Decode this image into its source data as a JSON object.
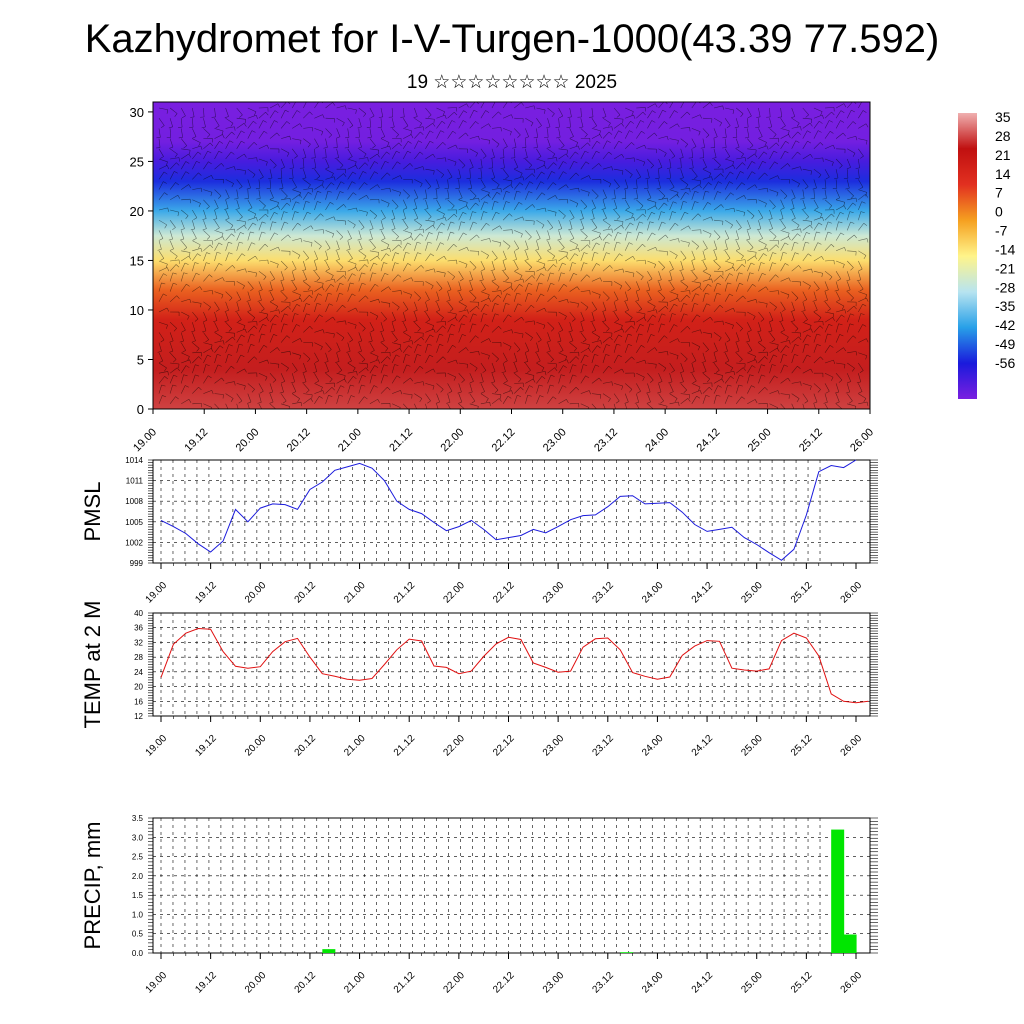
{
  "header": {
    "title": "Kazhydromet for I-V-Turgen-1000(43.39 77.592)",
    "subtitle": "19 ☆☆☆☆☆☆☆☆ 2025"
  },
  "colors": {
    "pmsl_line": "#1a1adc",
    "temp_line": "#e01010",
    "precip_bar": "#00e600",
    "colorbar": [
      "#7a1fe0",
      "#1a1adc",
      "#28a0e8",
      "#b8e4f0",
      "#fff48a",
      "#f5a020",
      "#e23020",
      "#c01010",
      "#f0b0b0"
    ]
  },
  "chart_data": [
    {
      "type": "heatmap",
      "name_hint": "cross-section",
      "title": "",
      "xlabel": "",
      "ylabel": "",
      "x_ticks": [
        "19.00",
        "19.12",
        "20.00",
        "20.12",
        "21.00",
        "21.12",
        "22.00",
        "22.12",
        "23.00",
        "23.12",
        "24.00",
        "24.12",
        "25.00",
        "25.12",
        "26.00"
      ],
      "y_ticks": [
        0,
        5,
        10,
        15,
        20,
        25,
        30
      ],
      "ylim": [
        0,
        31
      ],
      "levels": [
        {
          "y": 0,
          "value": 33
        },
        {
          "y": 4,
          "value": 30
        },
        {
          "y": 9,
          "value": 22
        },
        {
          "y": 12,
          "value": 10
        },
        {
          "y": 15,
          "value": -7
        },
        {
          "y": 17.5,
          "value": -20
        },
        {
          "y": 20,
          "value": -35
        },
        {
          "y": 23,
          "value": -48
        },
        {
          "y": 25,
          "value": -56
        },
        {
          "y": 27,
          "value": -62
        },
        {
          "y": 31,
          "value": -63
        }
      ],
      "colorbar": {
        "labels": [
          "35",
          "28",
          "21",
          "14",
          "7",
          "0",
          "-7",
          "-14",
          "-21",
          "-28",
          "-35",
          "-42",
          "-49",
          "-56"
        ],
        "range": [
          -63,
          42
        ]
      }
    },
    {
      "type": "line",
      "ylabel": "PMSL",
      "x_ticks": [
        "19.00",
        "19.12",
        "20.00",
        "20.12",
        "21.00",
        "21.12",
        "22.00",
        "22.12",
        "23.00",
        "23.12",
        "24.00",
        "24.12",
        "25.00",
        "25.12",
        "26.00"
      ],
      "y_ticks": [
        "999",
        "1002",
        "1005",
        "1008",
        "1011",
        "1014"
      ],
      "ylim": [
        999,
        1014
      ],
      "series": [
        {
          "values": [
            1005.2,
            1004.3,
            1003.3,
            1001.8,
            1000.6,
            1002.2,
            1006.8,
            1005.0,
            1007.0,
            1007.6,
            1007.5,
            1006.8,
            1009.7,
            1010.8,
            1012.5,
            1013.0,
            1013.5,
            1012.8,
            1011.0,
            1008.0,
            1006.8,
            1006.2,
            1004.9,
            1003.7,
            1004.3,
            1005.2,
            1003.9,
            1002.4,
            1002.7,
            1003.0,
            1003.9,
            1003.4,
            1004.3,
            1005.3,
            1005.9,
            1006.0,
            1007.2,
            1008.7,
            1008.8,
            1007.6,
            1007.7,
            1007.8,
            1006.4,
            1004.6,
            1003.6,
            1003.9,
            1004.2,
            1002.7,
            1001.7,
            1000.5,
            999.4,
            1001.0,
            1006.0,
            1012.3,
            1013.2,
            1012.9,
            1014.0
          ]
        }
      ]
    },
    {
      "type": "line",
      "ylabel": "TEMP at 2 M",
      "x_ticks": [
        "19.00",
        "19.12",
        "20.00",
        "20.12",
        "21.00",
        "21.12",
        "22.00",
        "22.12",
        "23.00",
        "23.12",
        "24.00",
        "24.12",
        "25.00",
        "25.12",
        "26.00"
      ],
      "y_ticks": [
        "12",
        "16",
        "20",
        "24",
        "28",
        "32",
        "36",
        "40"
      ],
      "ylim": [
        12,
        40
      ],
      "series": [
        {
          "values": [
            22.5,
            31.5,
            34.5,
            35.8,
            35.6,
            29.5,
            25.5,
            25.0,
            25.4,
            29.5,
            32.2,
            33.1,
            28.0,
            23.5,
            22.8,
            22.0,
            21.7,
            22.2,
            26.0,
            30.0,
            32.9,
            32.4,
            25.6,
            25.2,
            23.5,
            24.2,
            28.2,
            31.6,
            33.4,
            32.8,
            26.4,
            25.2,
            23.9,
            24.2,
            30.7,
            33.0,
            33.2,
            30.0,
            23.8,
            22.8,
            22.0,
            22.6,
            28.5,
            31.0,
            32.5,
            32.3,
            25.0,
            24.5,
            24.2,
            24.8,
            32.5,
            34.5,
            33.2,
            28.3,
            18.0,
            16.0,
            15.6,
            16.0
          ]
        }
      ]
    },
    {
      "type": "bar",
      "ylabel": "PRECIP, mm",
      "x_ticks": [
        "19.00",
        "19.12",
        "20.00",
        "20.12",
        "21.00",
        "21.12",
        "22.00",
        "22.12",
        "23.00",
        "23.12",
        "24.00",
        "24.12",
        "25.00",
        "25.12",
        "26.00"
      ],
      "y_ticks": [
        "0.0",
        "0.5",
        "1.0",
        "1.5",
        "2.0",
        "2.5",
        "3.0",
        "3.5"
      ],
      "ylim": [
        0,
        3.5
      ],
      "bars": [
        {
          "hour": 39,
          "value": 0.1
        },
        {
          "hour": 111,
          "value": 0.02
        },
        {
          "hour": 162,
          "value": 3.2
        },
        {
          "hour": 165,
          "value": 0.48
        }
      ]
    }
  ]
}
